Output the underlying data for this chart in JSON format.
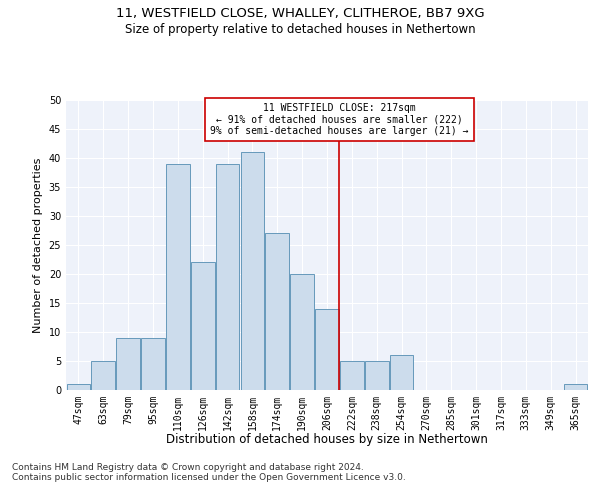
{
  "title": "11, WESTFIELD CLOSE, WHALLEY, CLITHEROE, BB7 9XG",
  "subtitle": "Size of property relative to detached houses in Nethertown",
  "xlabel": "Distribution of detached houses by size in Nethertown",
  "ylabel": "Number of detached properties",
  "footer1": "Contains HM Land Registry data © Crown copyright and database right 2024.",
  "footer2": "Contains public sector information licensed under the Open Government Licence v3.0.",
  "categories": [
    "47sqm",
    "63sqm",
    "79sqm",
    "95sqm",
    "110sqm",
    "126sqm",
    "142sqm",
    "158sqm",
    "174sqm",
    "190sqm",
    "206sqm",
    "222sqm",
    "238sqm",
    "254sqm",
    "270sqm",
    "285sqm",
    "301sqm",
    "317sqm",
    "333sqm",
    "349sqm",
    "365sqm"
  ],
  "values": [
    1,
    5,
    9,
    9,
    39,
    22,
    39,
    41,
    27,
    20,
    14,
    5,
    5,
    6,
    0,
    0,
    0,
    0,
    0,
    0,
    1
  ],
  "bar_color": "#ccdcec",
  "bar_edge_color": "#6699bb",
  "property_line_index": 11,
  "property_line_label": "11 WESTFIELD CLOSE: 217sqm",
  "annotation_line1": "← 91% of detached houses are smaller (222)",
  "annotation_line2": "9% of semi-detached houses are larger (21) →",
  "annotation_box_color": "#ffffff",
  "annotation_box_edge": "#cc0000",
  "line_color": "#cc0000",
  "ylim": [
    0,
    50
  ],
  "yticks": [
    0,
    5,
    10,
    15,
    20,
    25,
    30,
    35,
    40,
    45,
    50
  ],
  "background_color": "#eef2fa",
  "grid_color": "#ffffff",
  "title_fontsize": 9.5,
  "subtitle_fontsize": 8.5,
  "xlabel_fontsize": 8.5,
  "ylabel_fontsize": 8,
  "tick_fontsize": 7,
  "annot_fontsize": 7,
  "footer_fontsize": 6.5
}
